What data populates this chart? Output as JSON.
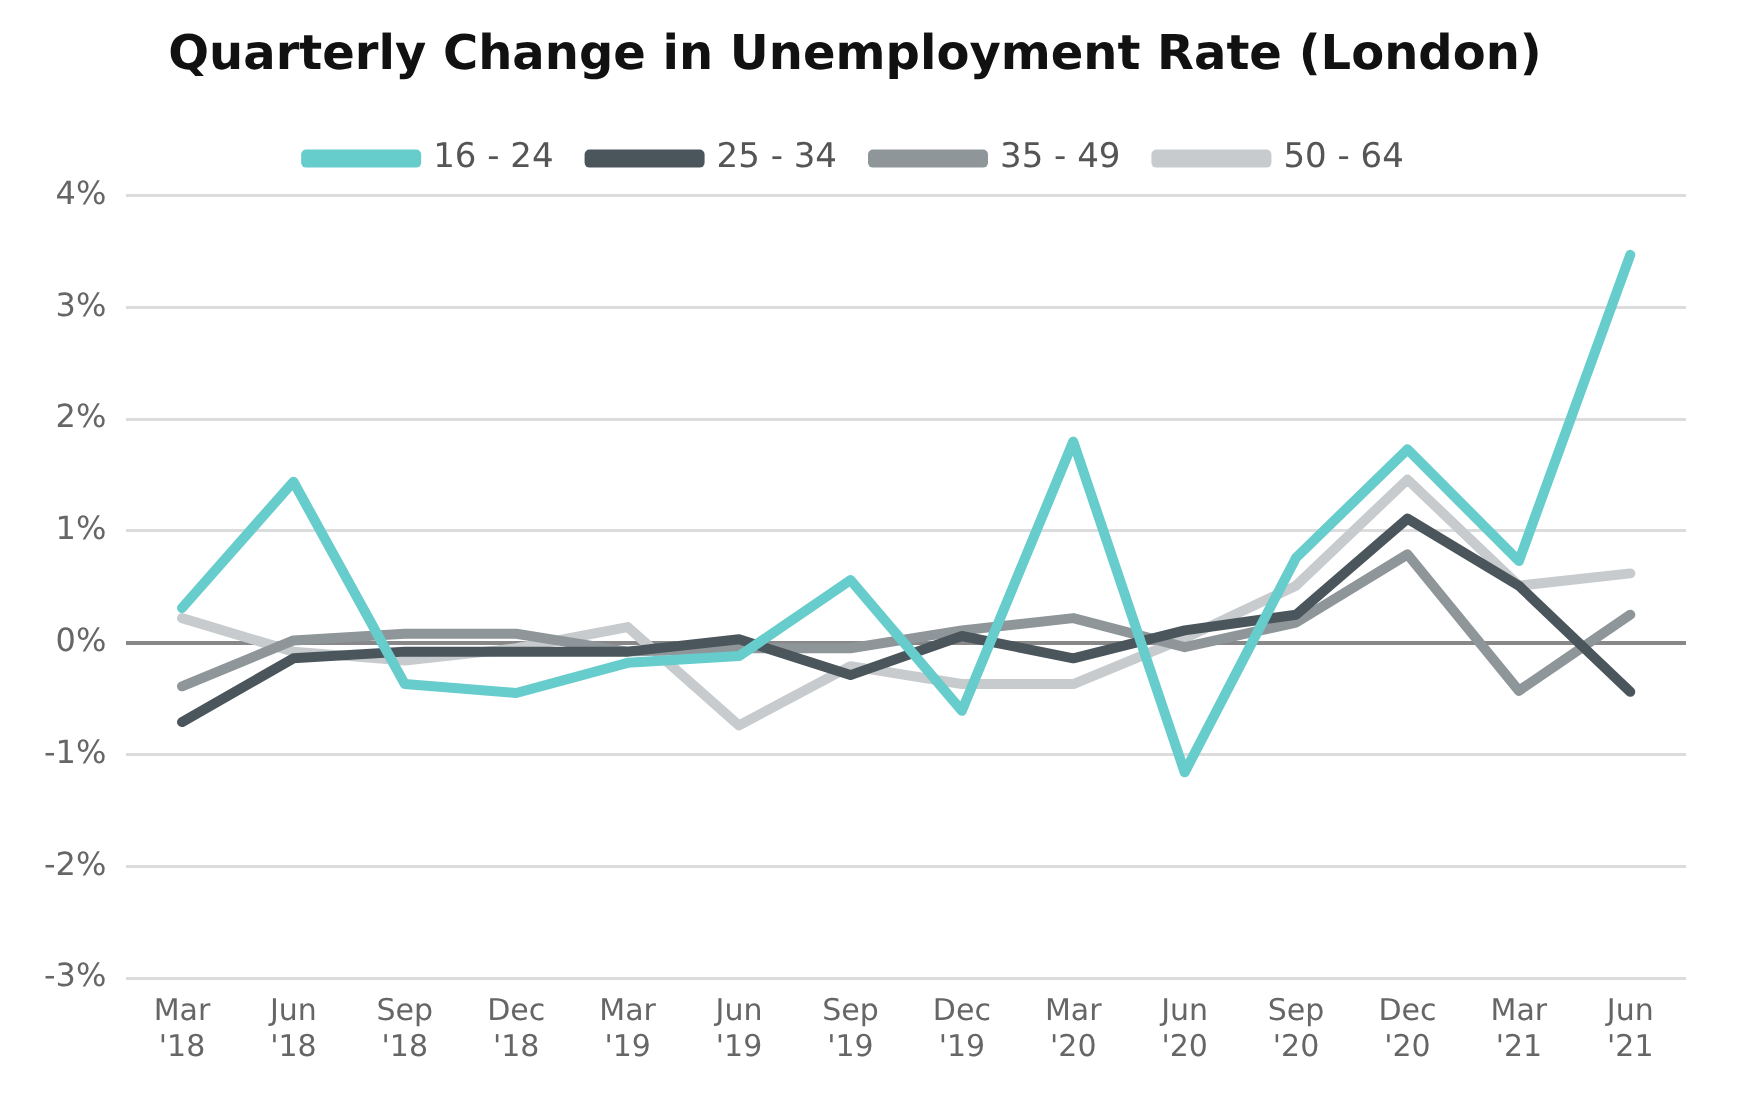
{
  "chart_data": {
    "type": "line",
    "title": "Quarterly Change in Unemployment Rate (London)",
    "categories": [
      "Mar '18",
      "Jun '18",
      "Sep '18",
      "Dec '18",
      "Mar '19",
      "Jun '19",
      "Sep '19",
      "Dec '19",
      "Mar '20",
      "Jun '20",
      "Sep '20",
      "Dec '20",
      "Mar '21",
      "Jun '21"
    ],
    "series": [
      {
        "name": "16 - 24",
        "color": "#66cccc",
        "values": [
          0.31,
          1.44,
          -0.37,
          -0.45,
          -0.18,
          -0.12,
          0.56,
          -0.61,
          1.8,
          -1.16,
          0.76,
          1.73,
          0.73,
          3.47
        ]
      },
      {
        "name": "25 - 34",
        "color": "#4a555c",
        "values": [
          -0.71,
          -0.14,
          -0.08,
          -0.08,
          -0.08,
          0.03,
          -0.29,
          0.06,
          -0.14,
          0.11,
          0.25,
          1.11,
          0.51,
          -0.44
        ]
      },
      {
        "name": "35 - 49",
        "color": "#8f9699",
        "values": [
          -0.39,
          0.02,
          0.08,
          0.08,
          -0.08,
          -0.05,
          -0.05,
          0.11,
          0.22,
          -0.04,
          0.18,
          0.79,
          -0.43,
          0.25
        ]
      },
      {
        "name": "50 - 64",
        "color": "#c8cbcd",
        "values": [
          0.22,
          -0.08,
          -0.16,
          -0.05,
          0.14,
          -0.74,
          -0.21,
          -0.37,
          -0.37,
          0.04,
          0.51,
          1.46,
          0.51,
          0.62
        ]
      }
    ],
    "ylim": [
      -3,
      4
    ],
    "yticks": [
      {
        "value": -3,
        "label": "-3%"
      },
      {
        "value": -2,
        "label": "-2%"
      },
      {
        "value": -1,
        "label": "-1%"
      },
      {
        "value": 0,
        "label": "0%"
      },
      {
        "value": 1,
        "label": "1%"
      },
      {
        "value": 2,
        "label": "2%"
      },
      {
        "value": 3,
        "label": "3%"
      },
      {
        "value": 4,
        "label": "4%"
      }
    ],
    "grid": "y",
    "legend": "top",
    "marker": "none",
    "line_style": "solid"
  }
}
